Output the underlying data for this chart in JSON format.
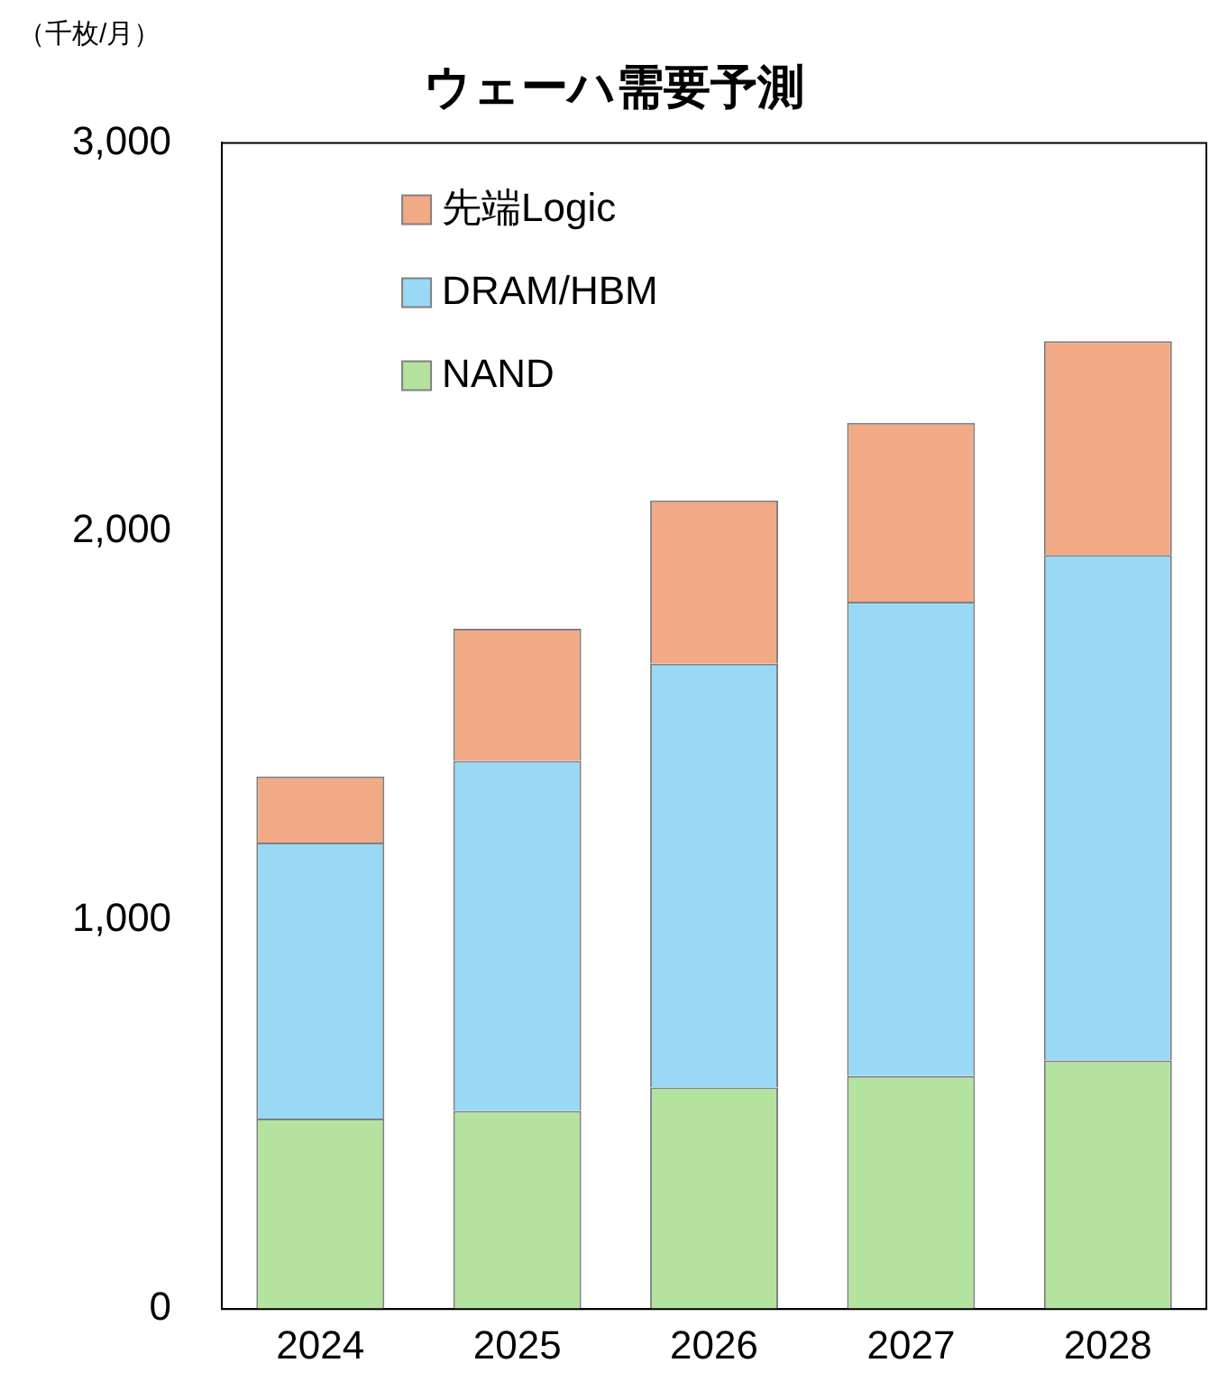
{
  "chart_data": {
    "type": "bar",
    "title": "ウェーハ需要予測",
    "ylabel": "（千枚/月）",
    "categories": [
      "2024",
      "2025",
      "2026",
      "2027",
      "2028"
    ],
    "stacked": true,
    "ylim": [
      0,
      3000
    ],
    "yticks": [
      0,
      {
        "value": 1000,
        "label": "1,000"
      },
      {
        "value": 2000,
        "label": "2,000"
      },
      {
        "value": 3000,
        "label": "3,000"
      }
    ],
    "grid": false,
    "legend": "top left",
    "series": [
      {
        "name": "NAND",
        "color": "#b4e3a0",
        "values": [
          490,
          510,
          570,
          600,
          640
        ]
      },
      {
        "name": "DRAM/HBM",
        "color": "#99d9f6",
        "values": [
          710,
          900,
          1090,
          1220,
          1300
        ]
      },
      {
        "name": "先端Logic",
        "color": "#f2aa86",
        "values": [
          170,
          340,
          420,
          460,
          550
        ]
      }
    ]
  }
}
